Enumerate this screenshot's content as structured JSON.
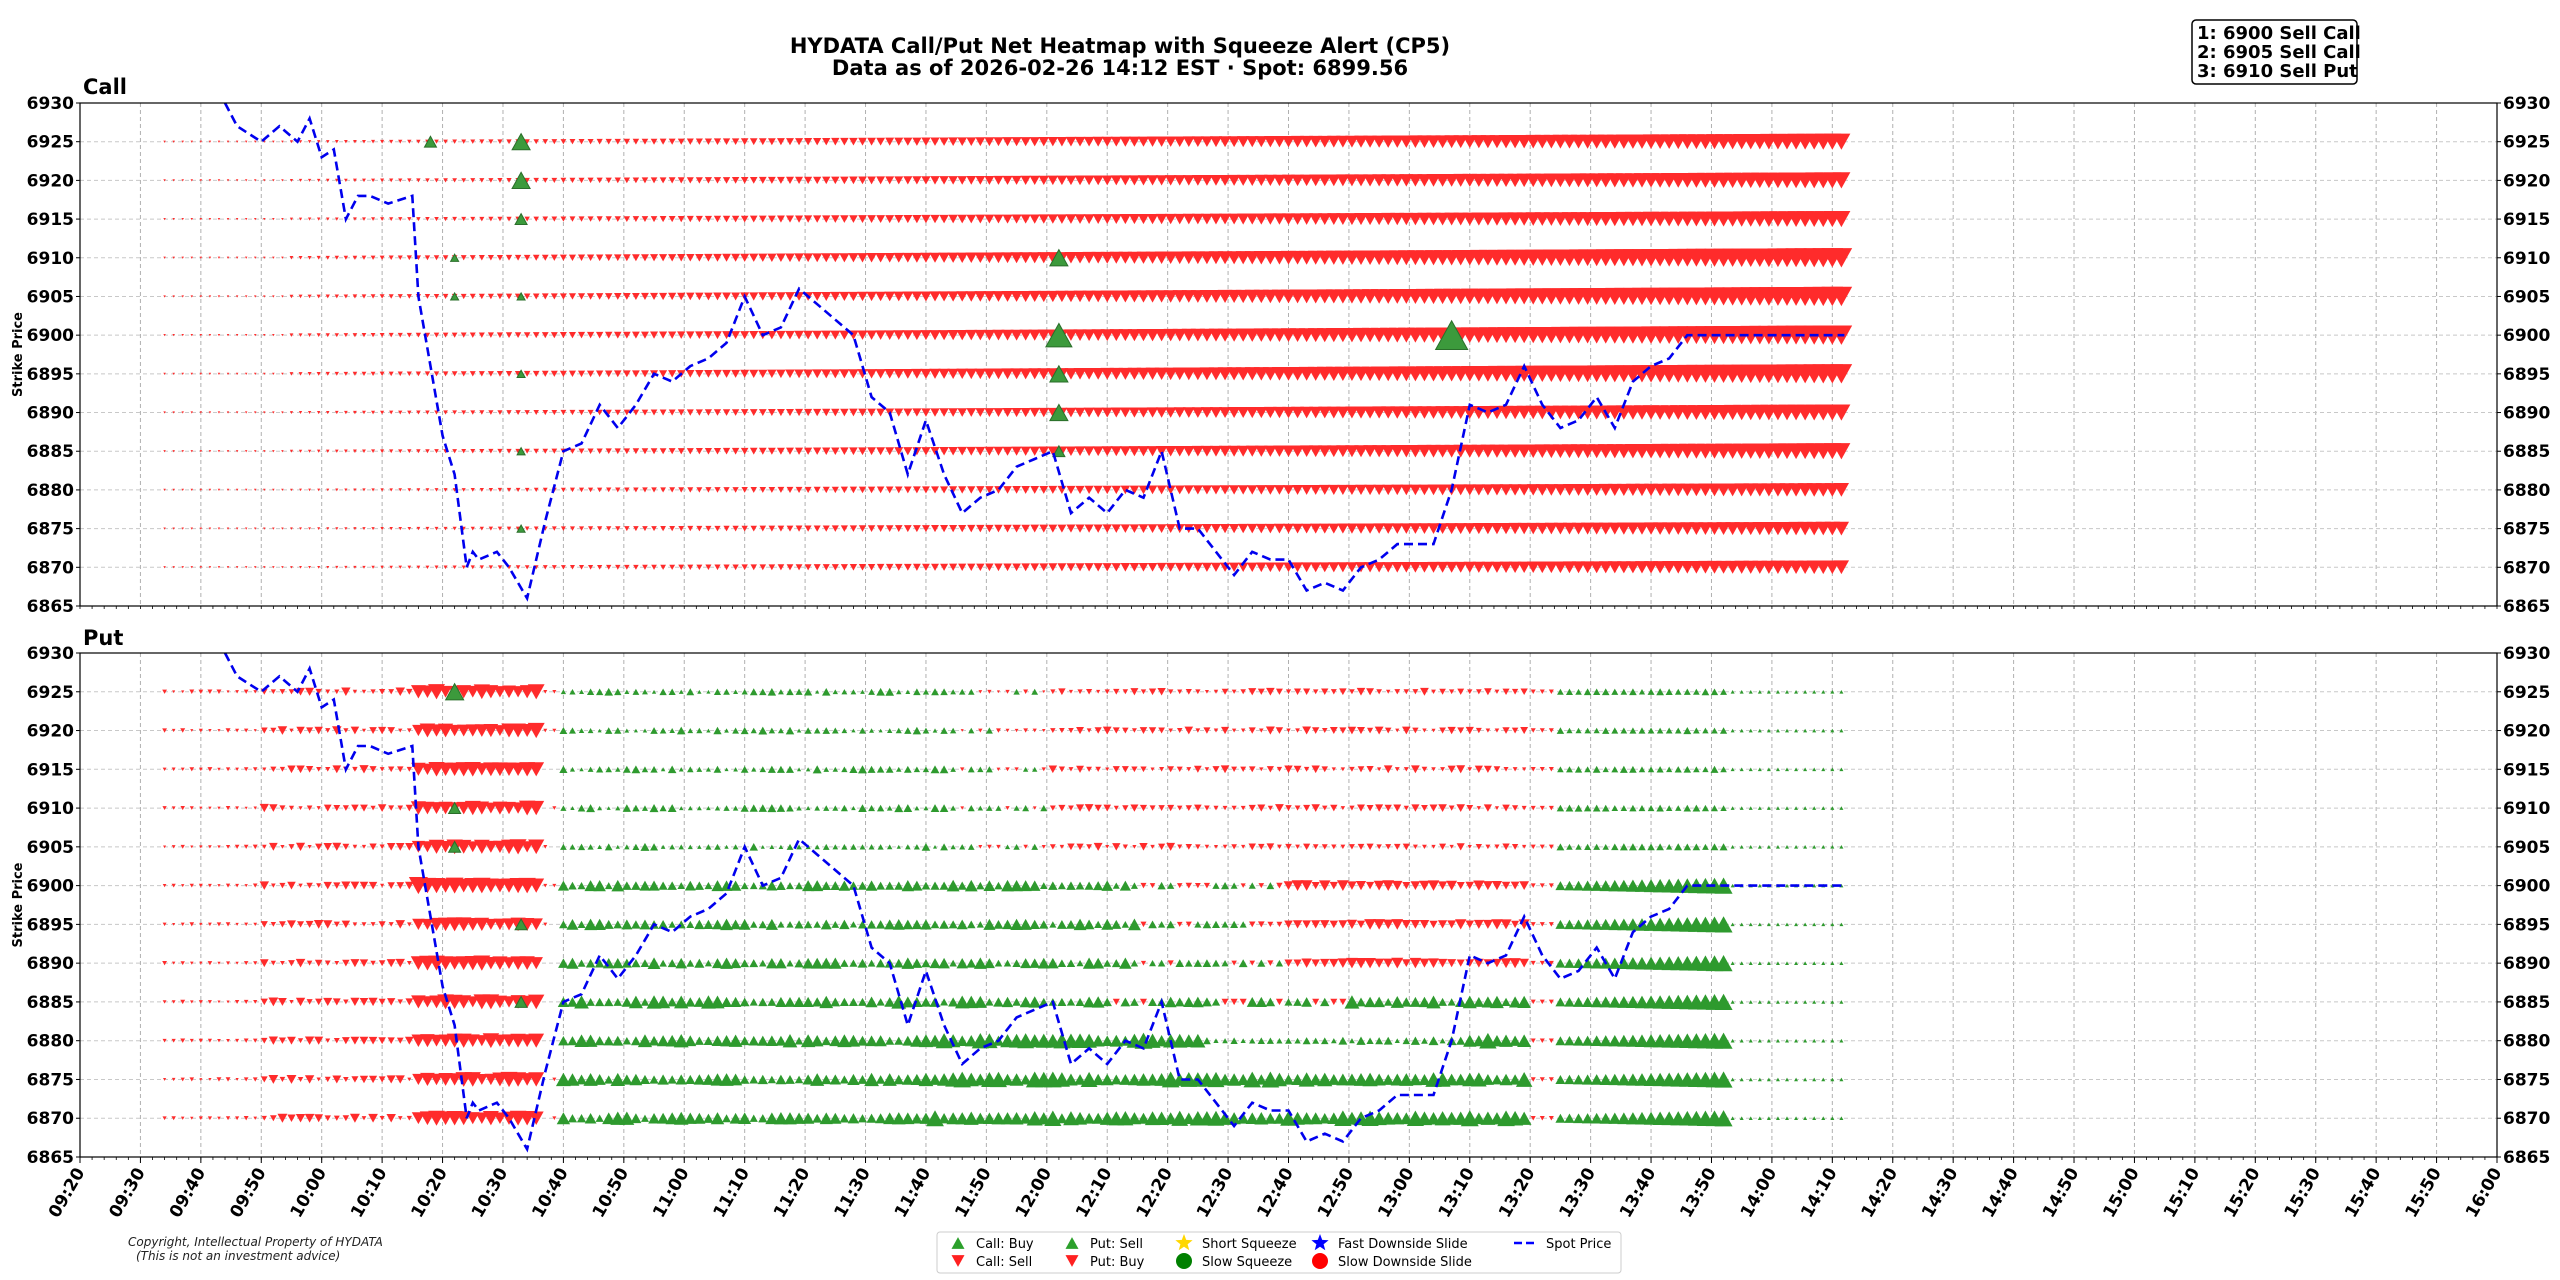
{
  "chart_data": {
    "type": "heatmap",
    "title_line1": "HYDATA Call/Put Net Heatmap with Squeeze Alert (CP5)",
    "title_line2": "Data as of 2026-02-26 14:12 EST · Spot: 6899.56",
    "ylabel": "Strike Price",
    "time_ticks": [
      "09:20",
      "09:30",
      "09:40",
      "09:50",
      "10:00",
      "10:10",
      "10:20",
      "10:30",
      "10:40",
      "10:50",
      "11:00",
      "11:10",
      "11:20",
      "11:30",
      "11:40",
      "11:50",
      "12:00",
      "12:10",
      "12:20",
      "12:30",
      "12:40",
      "12:50",
      "13:00",
      "13:10",
      "13:20",
      "13:30",
      "13:40",
      "13:50",
      "14:00",
      "14:10",
      "14:20",
      "14:30",
      "14:40",
      "14:50",
      "15:00",
      "15:10",
      "15:20",
      "15:30",
      "15:40",
      "15:50",
      "16:00"
    ],
    "xlim_minutes": [
      560,
      960
    ],
    "ylim": [
      6865,
      6930
    ],
    "y_ticks": [
      6865,
      6870,
      6875,
      6880,
      6885,
      6890,
      6895,
      6900,
      6905,
      6910,
      6915,
      6920,
      6925,
      6930
    ],
    "strikes": [
      6870,
      6875,
      6880,
      6885,
      6890,
      6895,
      6900,
      6905,
      6910,
      6915,
      6920,
      6925
    ],
    "data_start_minute": 574,
    "data_end_minute": 852,
    "panels": [
      {
        "name": "Call",
        "pattern": "call"
      },
      {
        "name": "Put",
        "pattern": "put"
      }
    ],
    "spot_series": {
      "name": "Spot Price",
      "minutes": [
        584,
        586,
        590,
        593,
        596,
        598,
        600,
        602,
        604,
        606,
        608,
        611,
        615,
        616,
        620,
        622,
        624,
        625,
        626,
        629,
        631,
        634,
        637,
        640,
        643,
        646,
        649,
        652,
        655,
        658,
        661,
        664,
        667,
        670,
        673,
        676,
        679,
        682,
        685,
        688,
        691,
        694,
        697,
        700,
        703,
        706,
        709,
        712,
        715,
        718,
        721,
        724,
        727,
        730,
        733,
        736,
        739,
        742,
        745,
        748,
        751,
        754,
        757,
        760,
        763,
        766,
        769,
        772,
        775,
        778,
        781,
        784,
        787,
        790,
        793,
        796,
        799,
        802,
        805,
        808,
        811,
        814,
        817,
        820,
        823,
        826,
        829,
        832,
        835,
        838,
        841,
        844,
        847,
        850,
        852
      ],
      "values": [
        6930,
        6927,
        6925,
        6927,
        6925,
        6928,
        6923,
        6924,
        6915,
        6918,
        6918,
        6917,
        6918,
        6905,
        6887,
        6882,
        6870,
        6872,
        6871,
        6872,
        6870,
        6866,
        6876,
        6885,
        6886,
        6891,
        6888,
        6891,
        6895,
        6894,
        6896,
        6897,
        6899,
        6905,
        6900,
        6901,
        6906,
        6904,
        6902,
        6900,
        6892,
        6890,
        6882,
        6889,
        6882,
        6877,
        6879,
        6880,
        6883,
        6884,
        6885,
        6877,
        6879,
        6877,
        6880,
        6879,
        6885,
        6875,
        6875,
        6872,
        6869,
        6872,
        6871,
        6871,
        6867,
        6868,
        6867,
        6870,
        6871,
        6873,
        6873,
        6873,
        6880,
        6891,
        6890,
        6891,
        6896,
        6891,
        6888,
        6889,
        6892,
        6888,
        6894,
        6896,
        6897,
        6900,
        6900,
        6900,
        6900,
        6900,
        6900,
        6900,
        6900,
        6900,
        6900
      ]
    },
    "squeeze_alerts": [
      {
        "panel": "Call",
        "minute": 618,
        "strike": 6925,
        "size": "small"
      },
      {
        "panel": "Call",
        "minute": 633,
        "strike": 6925,
        "size": "medium"
      },
      {
        "panel": "Call",
        "minute": 633,
        "strike": 6920,
        "size": "medium"
      },
      {
        "panel": "Call",
        "minute": 633,
        "strike": 6915,
        "size": "small"
      },
      {
        "panel": "Call",
        "minute": 622,
        "strike": 6910,
        "size": "tiny"
      },
      {
        "panel": "Call",
        "minute": 622,
        "strike": 6905,
        "size": "tiny"
      },
      {
        "panel": "Call",
        "minute": 633,
        "strike": 6905,
        "size": "tiny"
      },
      {
        "panel": "Call",
        "minute": 633,
        "strike": 6895,
        "size": "tiny"
      },
      {
        "panel": "Call",
        "minute": 633,
        "strike": 6885,
        "size": "tiny"
      },
      {
        "panel": "Call",
        "minute": 633,
        "strike": 6875,
        "size": "tiny"
      },
      {
        "panel": "Call",
        "minute": 722,
        "strike": 6910,
        "size": "medium"
      },
      {
        "panel": "Call",
        "minute": 722,
        "strike": 6900,
        "size": "large"
      },
      {
        "panel": "Call",
        "minute": 722,
        "strike": 6895,
        "size": "medium"
      },
      {
        "panel": "Call",
        "minute": 722,
        "strike": 6890,
        "size": "medium"
      },
      {
        "panel": "Call",
        "minute": 722,
        "strike": 6885,
        "size": "small"
      },
      {
        "panel": "Call",
        "minute": 787,
        "strike": 6900,
        "size": "xlarge"
      },
      {
        "panel": "Put",
        "minute": 622,
        "strike": 6925,
        "size": "medium"
      },
      {
        "panel": "Put",
        "minute": 622,
        "strike": 6910,
        "size": "small"
      },
      {
        "panel": "Put",
        "minute": 622,
        "strike": 6905,
        "size": "small"
      },
      {
        "panel": "Put",
        "minute": 633,
        "strike": 6895,
        "size": "small"
      },
      {
        "panel": "Put",
        "minute": 633,
        "strike": 6885,
        "size": "small"
      }
    ],
    "top_signals": [
      "1: 6900 Sell Call",
      "2: 6905 Sell Call",
      "3: 6910 Sell Put"
    ],
    "legend": [
      {
        "label": "Call: Buy",
        "marker": "triangle-up",
        "color": "#2ca02c"
      },
      {
        "label": "Call: Sell",
        "marker": "triangle-down",
        "color": "#ff2020"
      },
      {
        "label": "Put: Sell",
        "marker": "triangle-up",
        "color": "#2ca02c"
      },
      {
        "label": "Put: Buy",
        "marker": "triangle-down",
        "color": "#ff2020"
      },
      {
        "label": "Short Squeeze",
        "marker": "star",
        "color": "#ffd700"
      },
      {
        "label": "Slow Squeeze",
        "marker": "circle",
        "color": "#008000"
      },
      {
        "label": "Fast Downside Slide",
        "marker": "star",
        "color": "#0000ff"
      },
      {
        "label": "Slow Downside Slide",
        "marker": "circle",
        "color": "#ff0000"
      },
      {
        "label": "Spot Price",
        "marker": "dashed-line",
        "color": "#0000ff"
      }
    ],
    "copyright": [
      "Copyright, Intellectual Property of HYDATA",
      "(This is not an investment advice)"
    ]
  }
}
